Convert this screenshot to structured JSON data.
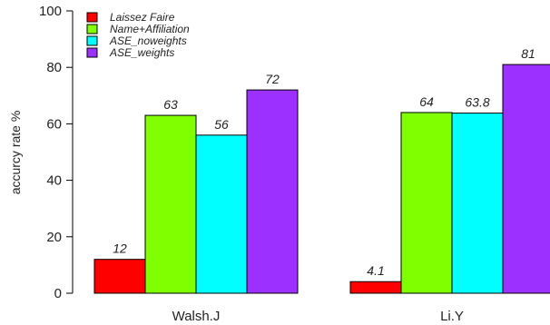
{
  "chart_data": {
    "type": "bar",
    "title": "",
    "xlabel": "",
    "ylabel": "accurcy rate %",
    "ylim": [
      0,
      100
    ],
    "yticks": [
      0,
      20,
      40,
      60,
      80,
      100
    ],
    "categories": [
      "Walsh.J",
      "Li.Y"
    ],
    "series": [
      {
        "name": "Laissez Faire",
        "color": "#ff0000",
        "values": [
          12,
          4.1
        ],
        "labels": [
          "12",
          "4.1"
        ]
      },
      {
        "name": "Name+Affiliation",
        "color": "#7fff00",
        "values": [
          63,
          64
        ],
        "labels": [
          "63",
          "64"
        ]
      },
      {
        "name": "ASE_noweights",
        "color": "#00ffff",
        "values": [
          56,
          63.8
        ],
        "labels": [
          "56",
          "63.8"
        ]
      },
      {
        "name": "ASE_weights",
        "color": "#9b30ff",
        "values": [
          72,
          81
        ],
        "labels": [
          "72",
          "81"
        ]
      }
    ],
    "grid": false,
    "legend": "top-left"
  }
}
